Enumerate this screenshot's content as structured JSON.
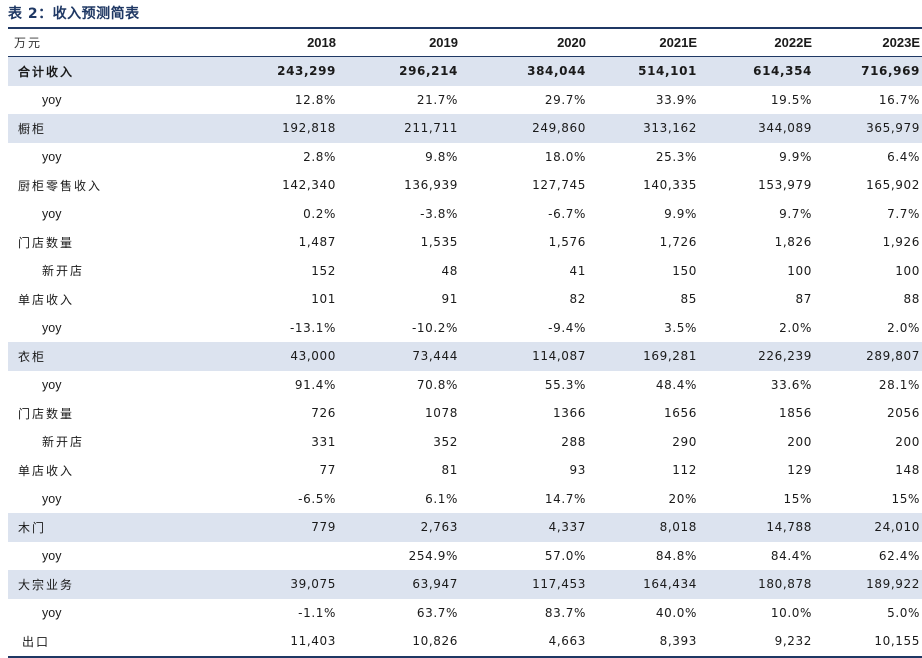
{
  "title": "表 2：收入预测简表",
  "table": {
    "unit_label": "万元",
    "columns": [
      "2018",
      "2019",
      "2020",
      "2021E",
      "2022E",
      "2023E"
    ],
    "rows": [
      {
        "label": "合计收入",
        "values": [
          "243,299",
          "296,214",
          "384,044",
          "514,101",
          "614,354",
          "716,969"
        ]
      },
      {
        "label": "yoy",
        "values": [
          "12.8%",
          "21.7%",
          "29.7%",
          "33.9%",
          "19.5%",
          "16.7%"
        ]
      },
      {
        "label": "橱柜",
        "values": [
          "192,818",
          "211,711",
          "249,860",
          "313,162",
          "344,089",
          "365,979"
        ]
      },
      {
        "label": "yoy",
        "values": [
          "2.8%",
          "9.8%",
          "18.0%",
          "25.3%",
          "9.9%",
          "6.4%"
        ]
      },
      {
        "label": "厨柜零售收入",
        "values": [
          "142,340",
          "136,939",
          "127,745",
          "140,335",
          "153,979",
          "165,902"
        ]
      },
      {
        "label": "yoy",
        "values": [
          "0.2%",
          "-3.8%",
          "-6.7%",
          "9.9%",
          "9.7%",
          "7.7%"
        ]
      },
      {
        "label": "门店数量",
        "values": [
          "1,487",
          "1,535",
          "1,576",
          "1,726",
          "1,826",
          "1,926"
        ]
      },
      {
        "label": "新开店",
        "values": [
          "152",
          "48",
          "41",
          "150",
          "100",
          "100"
        ]
      },
      {
        "label": "单店收入",
        "values": [
          "101",
          "91",
          "82",
          "85",
          "87",
          "88"
        ]
      },
      {
        "label": "yoy",
        "values": [
          "-13.1%",
          "-10.2%",
          "-9.4%",
          "3.5%",
          "2.0%",
          "2.0%"
        ]
      },
      {
        "label": "衣柜",
        "values": [
          "43,000",
          "73,444",
          "114,087",
          "169,281",
          "226,239",
          "289,807"
        ]
      },
      {
        "label": "yoy",
        "values": [
          "91.4%",
          "70.8%",
          "55.3%",
          "48.4%",
          "33.6%",
          "28.1%"
        ]
      },
      {
        "label": "门店数量",
        "values": [
          "726",
          "1078",
          "1366",
          "1656",
          "1856",
          "2056"
        ]
      },
      {
        "label": "新开店",
        "values": [
          "331",
          "352",
          "288",
          "290",
          "200",
          "200"
        ]
      },
      {
        "label": "单店收入",
        "values": [
          "77",
          "81",
          "93",
          "112",
          "129",
          "148"
        ]
      },
      {
        "label": "yoy",
        "values": [
          "-6.5%",
          "6.1%",
          "14.7%",
          "20%",
          "15%",
          "15%"
        ]
      },
      {
        "label": "木门",
        "values": [
          "779",
          "2,763",
          "4,337",
          "8,018",
          "14,788",
          "24,010"
        ]
      },
      {
        "label": "yoy",
        "values": [
          "",
          "254.9%",
          "57.0%",
          "84.8%",
          "84.4%",
          "62.4%"
        ]
      },
      {
        "label": "大宗业务",
        "values": [
          "39,075",
          "63,947",
          "117,453",
          "164,434",
          "180,878",
          "189,922"
        ]
      },
      {
        "label": "yoy",
        "values": [
          "-1.1%",
          "63.7%",
          "83.7%",
          "40.0%",
          "10.0%",
          "5.0%"
        ]
      },
      {
        "label": "出口",
        "values": [
          "11,403",
          "10,826",
          "4,663",
          "8,393",
          "9,232",
          "10,155"
        ]
      }
    ]
  }
}
